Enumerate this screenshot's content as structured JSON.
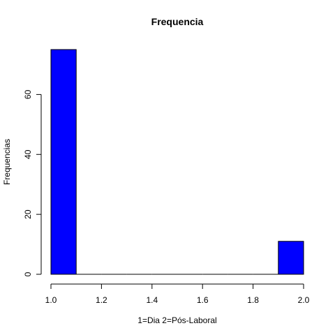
{
  "chart_data": {
    "type": "bar",
    "title": "Frequencia",
    "xlabel": "1=Dia 2=Pós-Laboral",
    "ylabel": "Frequencias",
    "bins": [
      {
        "x0": 1.0,
        "x1": 1.1,
        "count": 75
      },
      {
        "x0": 1.1,
        "x1": 1.2,
        "count": 0
      },
      {
        "x0": 1.2,
        "x1": 1.3,
        "count": 0
      },
      {
        "x0": 1.3,
        "x1": 1.4,
        "count": 0
      },
      {
        "x0": 1.4,
        "x1": 1.5,
        "count": 0
      },
      {
        "x0": 1.5,
        "x1": 1.6,
        "count": 0
      },
      {
        "x0": 1.6,
        "x1": 1.7,
        "count": 0
      },
      {
        "x0": 1.7,
        "x1": 1.8,
        "count": 0
      },
      {
        "x0": 1.8,
        "x1": 1.9,
        "count": 0
      },
      {
        "x0": 1.9,
        "x1": 2.0,
        "count": 11
      }
    ],
    "xlim": [
      1.0,
      2.0
    ],
    "ylim": [
      0,
      75
    ],
    "xticks": [
      "1.0",
      "1.2",
      "1.4",
      "1.6",
      "1.8",
      "2.0"
    ],
    "yticks": [
      "0",
      "20",
      "40",
      "60"
    ],
    "bar_color": "#0000ff",
    "grid": false,
    "legend": "none"
  }
}
